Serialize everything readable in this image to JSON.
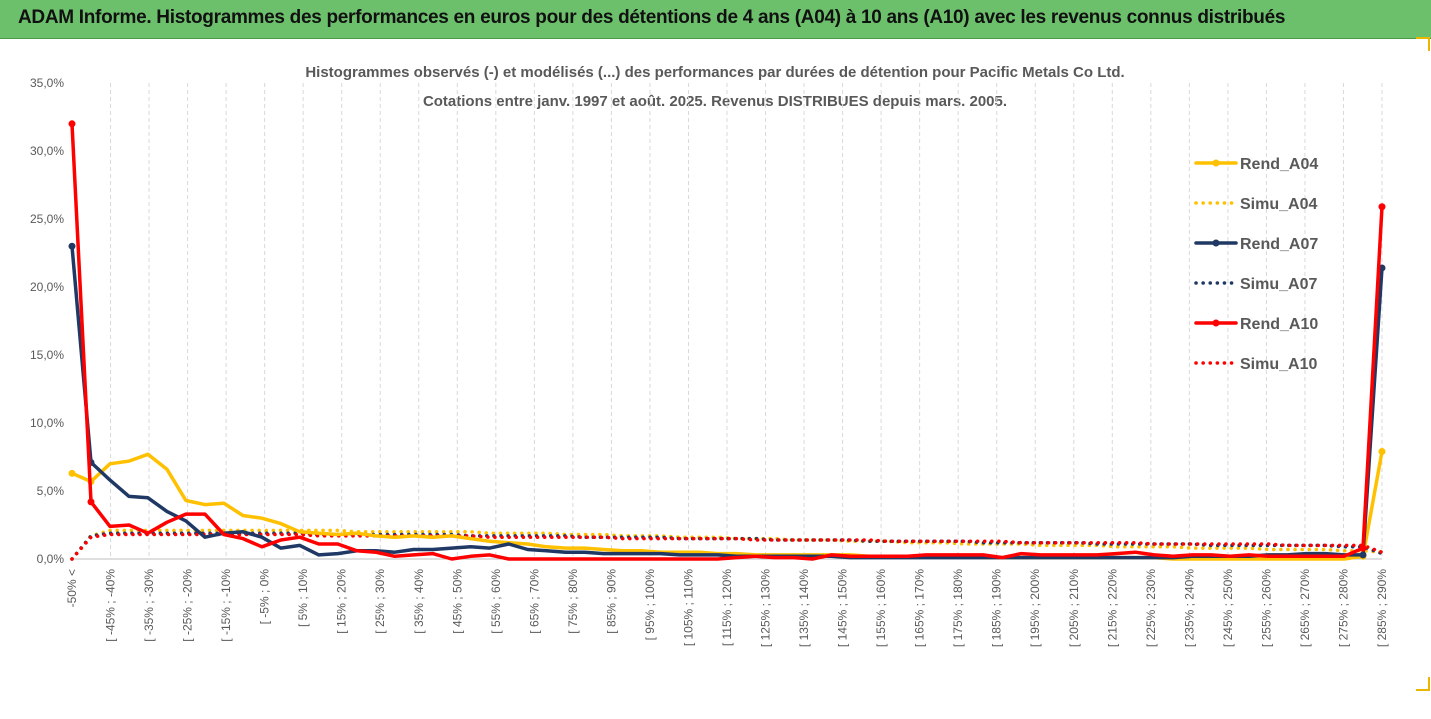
{
  "banner": {
    "title": "ADAM Informe. Histogrammes des performances en euros pour des détentions de 4 ans (A04) à 10 ans (A10) avec les revenus connus distribués"
  },
  "colors": {
    "banner_bg": "#6cc06c",
    "a04": "#ffc000",
    "a07": "#1f3864",
    "a10": "#ff0000",
    "grid": "#d9d9d9"
  },
  "chart_data": {
    "type": "line",
    "title": "Histogrammes observés (-) et modélisés (...) des performances par durées de détention pour Pacific Metals Co Ltd.",
    "subtitle": "Cotations entre janv. 1997 et août. 2025. Revenus DISTRIBUES depuis mars. 2005.",
    "ylim": [
      0,
      35
    ],
    "yticks": [
      "0,0%",
      "5,0%",
      "10,0%",
      "15,0%",
      "20,0%",
      "25,0%",
      "30,0%",
      "35,0%"
    ],
    "x_labels": [
      "-50% <",
      "[ -45% ; -40%",
      "[ -35% ; -30%",
      "[ -25% ; -20%",
      "[ -15% ; -10%",
      "[ -5% ; 0%",
      "[ 5% ; 10%",
      "[ 15% ; 20%",
      "[ 25% ; 30%",
      "[ 35% ; 40%",
      "[ 45% ; 50%",
      "[ 55% ; 60%",
      "[ 65% ; 70%",
      "[ 75% ; 80%",
      "[ 85% ; 90%",
      "[ 95% ; 100%",
      "[ 105% ; 110%",
      "[ 115% ; 120%",
      "[ 125% ; 130%",
      "[ 135% ; 140%",
      "[ 145% ; 150%",
      "[ 155% ; 160%",
      "[ 165% ; 170%",
      "[ 175% ; 180%",
      "[ 185% ; 190%",
      "[ 195% ; 200%",
      "[ 205% ; 210%",
      "[ 215% ; 220%",
      "[ 225% ; 230%",
      "[ 235% ; 240%",
      "[ 245% ; 250%",
      "[ 255% ; 260%",
      "[ 265% ; 270%",
      "[ 275% ; 280%",
      "[ 285% ; 290%"
    ],
    "legend_position": "right",
    "series": [
      {
        "name": "Rend_A04",
        "style": "solid",
        "color": "#ffc000",
        "values": [
          6.3,
          5.7,
          7.0,
          7.2,
          7.7,
          6.6,
          4.3,
          4.0,
          4.1,
          3.2,
          3.0,
          2.6,
          2.0,
          1.9,
          1.8,
          1.9,
          1.7,
          1.6,
          1.7,
          1.6,
          1.7,
          1.5,
          1.3,
          1.2,
          1.1,
          0.9,
          0.8,
          0.8,
          0.7,
          0.6,
          0.6,
          0.5,
          0.5,
          0.5,
          0.4,
          0.4,
          0.3,
          0.3,
          0.3,
          0.3,
          0.3,
          0.3,
          0.2,
          0.2,
          0.2,
          0.2,
          0.2,
          0.2,
          0.1,
          0.1,
          0.1,
          0.1,
          0.1,
          0.1,
          0.1,
          0.1,
          0.1,
          0.1,
          0.0,
          0.0,
          0.0,
          0.0,
          0.0,
          0.0,
          0.0,
          0.0,
          0.0,
          0.0,
          0.2,
          7.9
        ]
      },
      {
        "name": "Simu_A04",
        "style": "dotted",
        "color": "#ffc000",
        "values": [
          0.0,
          1.7,
          2.1,
          2.1,
          2.1,
          2.1,
          2.1,
          2.1,
          2.1,
          2.1,
          2.1,
          2.1,
          2.1,
          2.1,
          2.1,
          2.0,
          2.0,
          2.0,
          2.0,
          2.0,
          2.0,
          2.0,
          1.9,
          1.9,
          1.9,
          1.9,
          1.8,
          1.8,
          1.8,
          1.7,
          1.7,
          1.7,
          1.6,
          1.6,
          1.6,
          1.5,
          1.5,
          1.5,
          1.4,
          1.4,
          1.4,
          1.3,
          1.3,
          1.3,
          1.2,
          1.2,
          1.2,
          1.1,
          1.1,
          1.1,
          1.1,
          1.0,
          1.0,
          1.0,
          1.0,
          0.9,
          0.9,
          0.9,
          0.9,
          0.8,
          0.8,
          0.8,
          0.8,
          0.7,
          0.7,
          0.7,
          0.7,
          0.6,
          0.6,
          0.5
        ]
      },
      {
        "name": "Rend_A07",
        "style": "solid",
        "color": "#1f3864",
        "values": [
          23.0,
          7.1,
          5.8,
          4.6,
          4.5,
          3.5,
          2.8,
          1.6,
          1.9,
          2.0,
          1.6,
          0.8,
          1.0,
          0.3,
          0.4,
          0.6,
          0.6,
          0.5,
          0.7,
          0.7,
          0.8,
          0.9,
          0.8,
          1.1,
          0.7,
          0.6,
          0.5,
          0.5,
          0.4,
          0.4,
          0.4,
          0.4,
          0.3,
          0.3,
          0.3,
          0.2,
          0.2,
          0.2,
          0.2,
          0.2,
          0.2,
          0.1,
          0.1,
          0.1,
          0.1,
          0.1,
          0.1,
          0.1,
          0.1,
          0.1,
          0.1,
          0.1,
          0.1,
          0.1,
          0.1,
          0.1,
          0.1,
          0.1,
          0.1,
          0.2,
          0.2,
          0.2,
          0.2,
          0.3,
          0.3,
          0.4,
          0.4,
          0.3,
          0.3,
          21.4
        ]
      },
      {
        "name": "Simu_A07",
        "style": "dotted",
        "color": "#1f3864",
        "values": [
          0.0,
          1.7,
          1.9,
          1.9,
          1.9,
          1.9,
          1.9,
          1.9,
          1.9,
          1.9,
          1.9,
          1.9,
          1.9,
          1.8,
          1.8,
          1.8,
          1.8,
          1.8,
          1.8,
          1.8,
          1.8,
          1.7,
          1.7,
          1.7,
          1.7,
          1.7,
          1.7,
          1.6,
          1.6,
          1.6,
          1.6,
          1.6,
          1.5,
          1.5,
          1.5,
          1.5,
          1.5,
          1.4,
          1.4,
          1.4,
          1.4,
          1.4,
          1.3,
          1.3,
          1.3,
          1.3,
          1.3,
          1.3,
          1.2,
          1.2,
          1.2,
          1.2,
          1.2,
          1.2,
          1.1,
          1.1,
          1.1,
          1.1,
          1.1,
          1.1,
          1.0,
          1.0,
          1.0,
          1.0,
          1.0,
          1.0,
          1.0,
          0.9,
          0.9,
          0.4
        ]
      },
      {
        "name": "Rend_A10",
        "style": "solid",
        "color": "#ff0000",
        "values": [
          32.0,
          4.2,
          2.4,
          2.5,
          1.9,
          2.7,
          3.3,
          3.3,
          1.8,
          1.5,
          0.9,
          1.4,
          1.6,
          1.1,
          1.1,
          0.6,
          0.5,
          0.2,
          0.3,
          0.4,
          0.0,
          0.2,
          0.3,
          0.0,
          0.0,
          0.0,
          0.0,
          0.0,
          0.0,
          0.0,
          0.0,
          0.0,
          0.0,
          0.0,
          0.0,
          0.1,
          0.2,
          0.1,
          0.1,
          0.0,
          0.3,
          0.2,
          0.2,
          0.2,
          0.2,
          0.3,
          0.3,
          0.3,
          0.3,
          0.1,
          0.4,
          0.3,
          0.3,
          0.3,
          0.3,
          0.4,
          0.5,
          0.3,
          0.2,
          0.3,
          0.3,
          0.2,
          0.3,
          0.2,
          0.2,
          0.2,
          0.2,
          0.2,
          0.8,
          25.9
        ]
      },
      {
        "name": "Simu_A10",
        "style": "dotted",
        "color": "#ff0000",
        "values": [
          0.0,
          1.6,
          1.8,
          1.8,
          1.8,
          1.8,
          1.8,
          1.8,
          1.8,
          1.8,
          1.8,
          1.8,
          1.8,
          1.7,
          1.7,
          1.7,
          1.7,
          1.7,
          1.7,
          1.7,
          1.7,
          1.7,
          1.6,
          1.6,
          1.6,
          1.6,
          1.6,
          1.6,
          1.6,
          1.5,
          1.5,
          1.5,
          1.5,
          1.5,
          1.5,
          1.5,
          1.4,
          1.4,
          1.4,
          1.4,
          1.4,
          1.4,
          1.4,
          1.3,
          1.3,
          1.3,
          1.3,
          1.3,
          1.3,
          1.3,
          1.2,
          1.2,
          1.2,
          1.2,
          1.2,
          1.2,
          1.2,
          1.1,
          1.1,
          1.1,
          1.1,
          1.1,
          1.1,
          1.1,
          1.0,
          1.0,
          1.0,
          1.0,
          1.0,
          0.5
        ]
      }
    ]
  }
}
